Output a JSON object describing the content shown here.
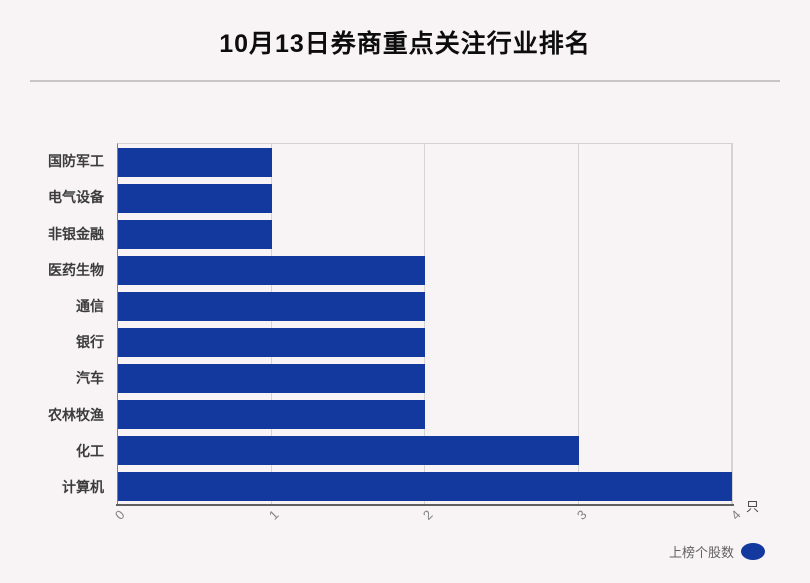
{
  "title": "10月13日券商重点关注行业排名",
  "chart_data": {
    "type": "bar",
    "orientation": "horizontal",
    "title": "10月13日券商重点关注行业排名",
    "categories": [
      "国防军工",
      "电气设备",
      "非银金融",
      "医药生物",
      "通信",
      "银行",
      "汽车",
      "农林牧渔",
      "化工",
      "计算机"
    ],
    "series": [
      {
        "name": "上榜个股数",
        "values": [
          1,
          1,
          1,
          2,
          2,
          2,
          2,
          2,
          3,
          4
        ]
      }
    ],
    "xlabel": "",
    "ylabel": "",
    "x_unit": "只",
    "xticks": [
      0,
      1,
      2,
      3,
      4
    ],
    "xlim": [
      0,
      4
    ],
    "grid": true,
    "legend_position": "bottom-right",
    "bar_color": "#13389E",
    "background_color": "#f8f4f5"
  },
  "legend": {
    "label": "上榜个股数",
    "marker": "ellipse-icon",
    "marker_color": "#13389E"
  },
  "axis": {
    "unit_label": "只"
  }
}
